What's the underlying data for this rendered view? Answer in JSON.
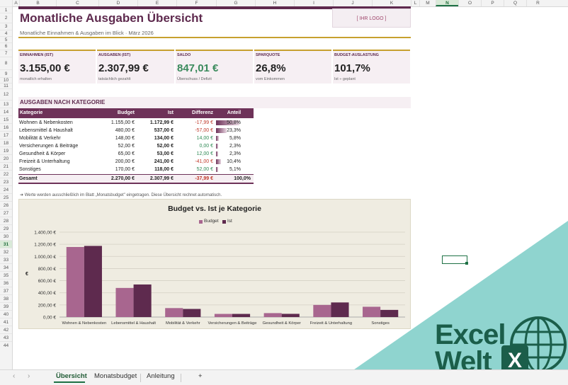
{
  "columns": [
    "A",
    "B",
    "C",
    "D",
    "E",
    "F",
    "G",
    "H",
    "I",
    "J",
    "K",
    "L",
    "M",
    "N",
    "O",
    "P",
    "Q",
    "R"
  ],
  "selected_column": "N",
  "rows": [
    "1",
    "2",
    "3",
    "4",
    "5",
    "6",
    "7",
    "8",
    "9",
    "10",
    "11",
    "12",
    "13",
    "14",
    "15",
    "16",
    "17",
    "18",
    "19",
    "20",
    "21",
    "22",
    "23",
    "24",
    "25",
    "26",
    "27",
    "28",
    "29",
    "30",
    "31",
    "32",
    "33",
    "34",
    "35",
    "36",
    "37",
    "38",
    "39",
    "40",
    "41",
    "42",
    "43",
    "44"
  ],
  "selected_row": "31",
  "header": {
    "title": "Monatliche Ausgaben Übersicht",
    "subtitle": "Monatliche Einnahmen & Ausgaben im Blick  ·  März 2026",
    "logo": "[ IHR LOGO ]"
  },
  "kpis": [
    {
      "label": "EINNAHMEN (IST)",
      "value": "3.155,00 €",
      "sub": "monatlich erhalten"
    },
    {
      "label": "AUSGABEN (IST)",
      "value": "2.307,99 €",
      "sub": "tatsächlich gezahlt"
    },
    {
      "label": "SALDO",
      "value": "847,01 €",
      "sub": "Überschuss / Defizit"
    },
    {
      "label": "SPARQUOTE",
      "value": "26,8%",
      "sub": "vom Einkommen"
    },
    {
      "label": "BUDGET-AUSLASTUNG",
      "value": "101,7%",
      "sub": "Ist ÷ geplant"
    }
  ],
  "section_title": "AUSGABEN NACH KATEGORIE",
  "table": {
    "headers": [
      "Kategorie",
      "Budget",
      "Ist",
      "Differenz",
      "Anteil"
    ],
    "rows": [
      {
        "cat": "Wohnen & Nebenkosten",
        "budget": "1.155,00 €",
        "ist": "1.172,99 €",
        "diff": "-17,99 €",
        "share": "50,8%",
        "share_value": 50.8,
        "sign": "neg"
      },
      {
        "cat": "Lebensmittel & Haushalt",
        "budget": "480,00 €",
        "ist": "537,00 €",
        "diff": "-57,00 €",
        "share": "23,3%",
        "share_value": 23.3,
        "sign": "neg"
      },
      {
        "cat": "Mobilität & Verkehr",
        "budget": "148,00 €",
        "ist": "134,00 €",
        "diff": "14,00 €",
        "share": "5,8%",
        "share_value": 5.8,
        "sign": "pos"
      },
      {
        "cat": "Versicherungen & Beiträge",
        "budget": "52,00 €",
        "ist": "52,00 €",
        "diff": "0,00 €",
        "share": "2,3%",
        "share_value": 2.3,
        "sign": "pos"
      },
      {
        "cat": "Gesundheit & Körper",
        "budget": "65,00 €",
        "ist": "53,00 €",
        "diff": "12,00 €",
        "share": "2,3%",
        "share_value": 2.3,
        "sign": "pos"
      },
      {
        "cat": "Freizeit & Unterhaltung",
        "budget": "200,00 €",
        "ist": "241,00 €",
        "diff": "-41,00 €",
        "share": "10,4%",
        "share_value": 10.4,
        "sign": "neg"
      },
      {
        "cat": "Sonstiges",
        "budget": "170,00 €",
        "ist": "118,00 €",
        "diff": "52,00 €",
        "share": "5,1%",
        "share_value": 5.1,
        "sign": "pos"
      }
    ],
    "total": {
      "cat": "Gesamt",
      "budget": "2.270,00 €",
      "ist": "2.307,99 €",
      "diff": "-37,99 €",
      "share": "100,0%"
    }
  },
  "note": "➜  Werte werden ausschließlich im Blatt „Monatsbudget\" eingetragen. Diese Übersicht rechnet automatisch.",
  "chart_data": {
    "type": "bar",
    "title": "Budget vs. Ist je Kategorie",
    "ylabel": "€",
    "xlabel": "",
    "categories": [
      "Wohnen & Nebenkosten",
      "Lebensmittel & Haushalt",
      "Mobilität & Verkehr",
      "Versicherungen & Beiträge",
      "Gesundheit & Körper",
      "Freizeit & Unterhaltung",
      "Sonstiges"
    ],
    "series": [
      {
        "name": "Budget",
        "values": [
          1155,
          480,
          148,
          52,
          65,
          200,
          170
        ],
        "color": "#a8668f"
      },
      {
        "name": "Ist",
        "values": [
          1172.99,
          537,
          134,
          52,
          53,
          241,
          118
        ],
        "color": "#5e2a4e"
      }
    ],
    "ylim": [
      0,
      1400
    ],
    "yticks": [
      0,
      200,
      400,
      600,
      800,
      1000,
      1200,
      1400
    ],
    "ytick_labels": [
      "0,00 €",
      "200,00 €",
      "400,00 €",
      "600,00 €",
      "800,00 €",
      "1.000,00 €",
      "1.200,00 €",
      "1.400,00 €"
    ],
    "grid": true,
    "legend": "top-center"
  },
  "tabs": [
    "Übersicht",
    "Monatsbudget",
    "Anleitung"
  ],
  "active_tab": "Übersicht",
  "add_tab_symbol": "+",
  "nav_prev": "‹",
  "nav_next": "›",
  "brand": {
    "line1": "Excel",
    "line2": "Welt",
    "accent": "#8fd4cf",
    "color": "#1b5e4a"
  }
}
